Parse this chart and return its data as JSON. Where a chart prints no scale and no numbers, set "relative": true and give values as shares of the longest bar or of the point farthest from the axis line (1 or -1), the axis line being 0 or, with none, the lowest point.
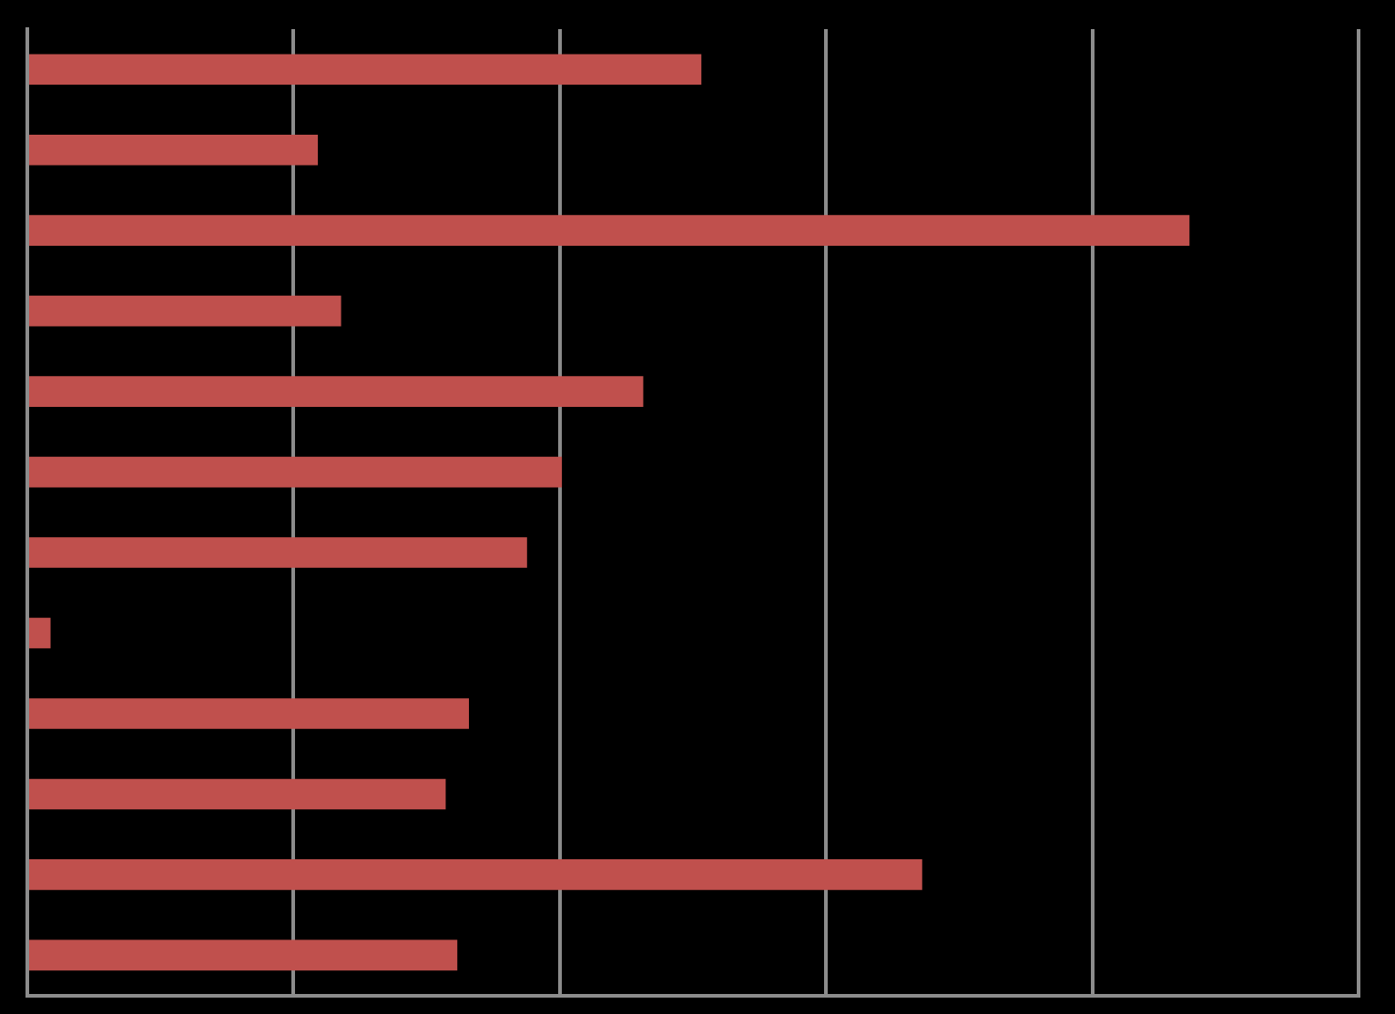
{
  "chart_data": {
    "type": "bar",
    "orientation": "horizontal",
    "relative": true,
    "categories": [
      null,
      null,
      null,
      null,
      null,
      null,
      null,
      null,
      null,
      null,
      null,
      null
    ],
    "values": [
      0.58,
      0.25,
      1,
      0.27,
      0.53,
      0.46,
      0.43,
      0.02,
      0.38,
      0.36,
      0.77,
      0.37
    ],
    "color": "#c0504d",
    "grid": "x"
  }
}
